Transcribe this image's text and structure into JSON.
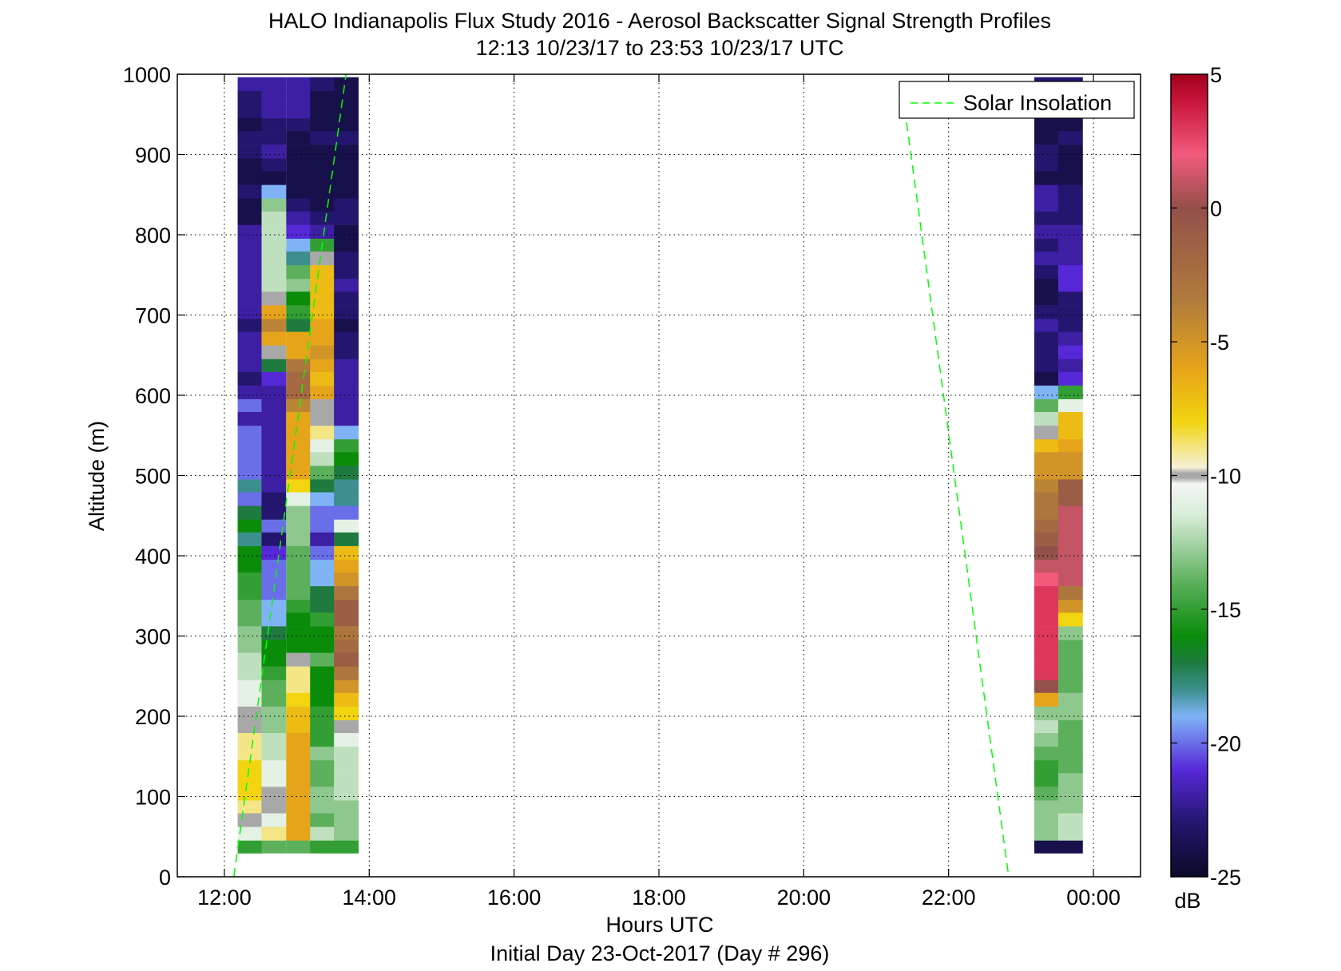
{
  "chart_data": {
    "type": "heatmap",
    "title": "HALO Indianapolis Flux Study 2016 - Aerosol Backscatter Signal Strength Profiles",
    "subtitle": "12:13 10/23/17 to 23:53 10/23/17  UTC",
    "xlabel": "Hours UTC",
    "xlabel2": "Initial Day 23-Oct-2017 (Day # 296)",
    "ylabel": "Altitude (m)",
    "xlim": [
      11.35,
      24.65
    ],
    "ylim": [
      0,
      1000
    ],
    "xticks": [
      12,
      14,
      16,
      18,
      20,
      22,
      24
    ],
    "xtick_labels": [
      "12:00",
      "14:00",
      "16:00",
      "18:00",
      "20:00",
      "22:00",
      "00:00"
    ],
    "yticks": [
      0,
      100,
      200,
      300,
      400,
      500,
      600,
      700,
      800,
      900,
      1000
    ],
    "ytick_labels": [
      "0",
      "100",
      "200",
      "300",
      "400",
      "500",
      "600",
      "700",
      "800",
      "900",
      "1000"
    ],
    "grid": true,
    "colorbar": {
      "label": "dB",
      "range": [
        -25,
        5
      ],
      "ticks": [
        5,
        0,
        -5,
        -10,
        -15,
        -20,
        -25
      ],
      "tick_labels": [
        "5",
        "0",
        "-5",
        "-10",
        "-15",
        "-20",
        "-25"
      ]
    },
    "legend": {
      "position": "top-right",
      "entries": [
        "Solar Insolation"
      ]
    },
    "solar_insolation": {
      "color": "#00ff00",
      "segments": [
        {
          "x": [
            12.13,
            13.68
          ],
          "y": [
            0,
            1000
          ]
        },
        {
          "x": [
            21.42,
            22.83
          ],
          "y": [
            940,
            0
          ]
        }
      ]
    },
    "altitude_bin_m": 16.67,
    "altitudes_m": [
      38,
      54,
      71,
      88,
      104,
      121,
      138,
      154,
      171,
      188,
      204,
      221,
      238,
      254,
      271,
      288,
      304,
      321,
      338,
      354,
      371,
      388,
      404,
      421,
      438,
      454,
      471,
      488,
      504,
      521,
      538,
      554,
      571,
      588,
      604,
      621,
      638,
      654,
      671,
      688,
      704,
      721,
      738,
      754,
      771,
      788,
      804,
      821,
      838,
      854,
      871,
      888,
      904,
      921,
      938,
      954,
      971,
      988
    ],
    "profiles": [
      {
        "time_utc": "12:21",
        "hours": 12.35,
        "db": [
          -15,
          -11,
          -10,
          -9,
          -8,
          -8,
          -8,
          -9,
          -9,
          -10,
          -10,
          -11,
          -11,
          -12,
          -12,
          -13,
          -13,
          -14,
          -14,
          -15,
          -15,
          -16,
          -16,
          -18,
          -16,
          -17,
          -20,
          -18,
          -20,
          -20,
          -20,
          -20,
          -22,
          -20,
          -22,
          -23,
          -22,
          -22,
          -22,
          -23,
          -22,
          -22,
          -22,
          -22,
          -22,
          -22,
          -22,
          -24,
          -24,
          -23,
          -24,
          -24,
          -23,
          -23,
          -24,
          -23,
          -23,
          -22
        ]
      },
      {
        "time_utc": "12:41",
        "hours": 12.68,
        "db": [
          -14,
          -9,
          -11,
          -10,
          -10,
          -11,
          -11,
          -12,
          -12,
          -13,
          -13,
          -14,
          -14,
          -15,
          -16,
          -16,
          -17,
          -19,
          -19,
          -20,
          -20,
          -20,
          -21,
          -23,
          -20,
          -23,
          -23,
          -22,
          -22,
          -22,
          -22,
          -22,
          -22,
          -22,
          -22,
          -21,
          -17,
          -10,
          -6,
          -4,
          -6,
          -10,
          -12,
          -12,
          -12,
          -12,
          -12,
          -12,
          -13,
          -19,
          -24,
          -23,
          -22,
          -23,
          -23,
          -22,
          -22,
          -22
        ]
      },
      {
        "time_utc": "13:01",
        "hours": 13.02,
        "db": [
          -14,
          -6,
          -6,
          -6,
          -6,
          -6,
          -6,
          -6,
          -6,
          -7,
          -7,
          -8,
          -9,
          -9,
          -10,
          -16,
          -16,
          -16,
          -15,
          -14,
          -14,
          -14,
          -14,
          -13,
          -13,
          -13,
          -11,
          -8,
          -6,
          -6,
          -6,
          -6,
          -6,
          -4,
          -2,
          -2,
          -3,
          -6,
          -6,
          -17,
          -15,
          -16,
          -13,
          -14,
          -18,
          -19,
          -21,
          -22,
          -23,
          -24,
          -24,
          -24,
          -24,
          -24,
          -23,
          -22,
          -22,
          -22
        ]
      },
      {
        "time_utc": "13:21",
        "hours": 13.35,
        "db": [
          -15,
          -12,
          -14,
          -13,
          -13,
          -14,
          -14,
          -13,
          -15,
          -15,
          -15,
          -16,
          -16,
          -16,
          -14,
          -16,
          -16,
          -15,
          -17,
          -17,
          -19,
          -19,
          -20,
          -22,
          -20,
          -20,
          -19,
          -17,
          -14,
          -12,
          -11,
          -9,
          -10,
          -10,
          -6,
          -7,
          -6,
          -5,
          -6,
          -6,
          -7,
          -7,
          -7,
          -7,
          -10,
          -15,
          -22,
          -23,
          -24,
          -24,
          -24,
          -24,
          -24,
          -23,
          -24,
          -24,
          -24,
          -23
        ]
      },
      {
        "time_utc": "13:41",
        "hours": 13.68,
        "db": [
          -15,
          -13,
          -13,
          -13,
          -12,
          -12,
          -12,
          -12,
          -11,
          -10,
          -8,
          -7,
          -5,
          -3,
          -1,
          -2,
          -3,
          -1,
          -1,
          -3,
          -5,
          -6,
          -7,
          -17,
          -11,
          -20,
          -18,
          -18,
          -17,
          -16,
          -15,
          -19,
          -22,
          -22,
          -22,
          -22,
          -22,
          -23,
          -23,
          -24,
          -23,
          -23,
          -22,
          -23,
          -23,
          -24,
          -24,
          -23,
          -23,
          -24,
          -24,
          -24,
          -24,
          -23,
          -24,
          -24,
          -24,
          -24
        ]
      },
      {
        "time_utc": "23:21",
        "hours": 23.35,
        "db": [
          -24,
          -13,
          -13,
          -13,
          -14,
          -15,
          -15,
          -14,
          -13,
          -12,
          -13,
          -6,
          0,
          3,
          3,
          3,
          3,
          3,
          3,
          3,
          2,
          1,
          0,
          -1,
          -2,
          -3,
          -3,
          -4,
          -5,
          -5,
          -7,
          -10,
          -12,
          -14,
          -19,
          -24,
          -23,
          -23,
          -23,
          -22,
          -23,
          -24,
          -24,
          -23,
          -22,
          -23,
          -22,
          -23,
          -22,
          -22,
          -24,
          -23,
          -23,
          -24,
          -24,
          -23,
          -23,
          -23
        ]
      },
      {
        "time_utc": "23:41",
        "hours": 23.68,
        "db": [
          -24,
          -12,
          -12,
          -13,
          -13,
          -13,
          -14,
          -14,
          -14,
          -14,
          -13,
          -13,
          -14,
          -14,
          -14,
          -14,
          -13,
          -8,
          -5,
          -3,
          1,
          1,
          1,
          1,
          1,
          1,
          -1,
          -1,
          -5,
          -5,
          -6,
          -7,
          -7,
          -11,
          -15,
          -21,
          -22,
          -21,
          -22,
          -23,
          -23,
          -23,
          -21,
          -21,
          -22,
          -22,
          -22,
          -23,
          -23,
          -23,
          -24,
          -24,
          -24,
          -23,
          -24,
          -23,
          -22,
          -23
        ]
      }
    ]
  }
}
